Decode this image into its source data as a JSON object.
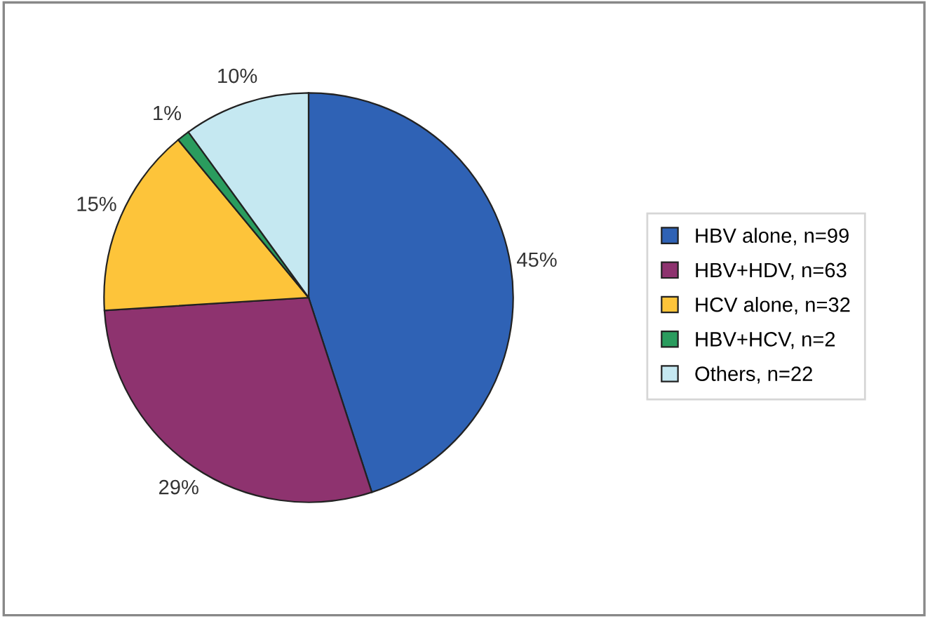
{
  "chart_data": {
    "type": "pie",
    "categories": [
      "HBV alone, n=99",
      "HBV+HDV, n=63",
      "HCV alone, n=32",
      "HBV+HCV, n=2",
      "Others, n=22"
    ],
    "values": [
      45,
      29,
      15,
      1,
      10
    ],
    "value_labels": [
      "45%",
      "29%",
      "15%",
      "1%",
      "10%"
    ],
    "colors": [
      "#2f62b5",
      "#8e336f",
      "#fdc43a",
      "#2a9c5e",
      "#c5e8f1"
    ],
    "legend": "right"
  }
}
